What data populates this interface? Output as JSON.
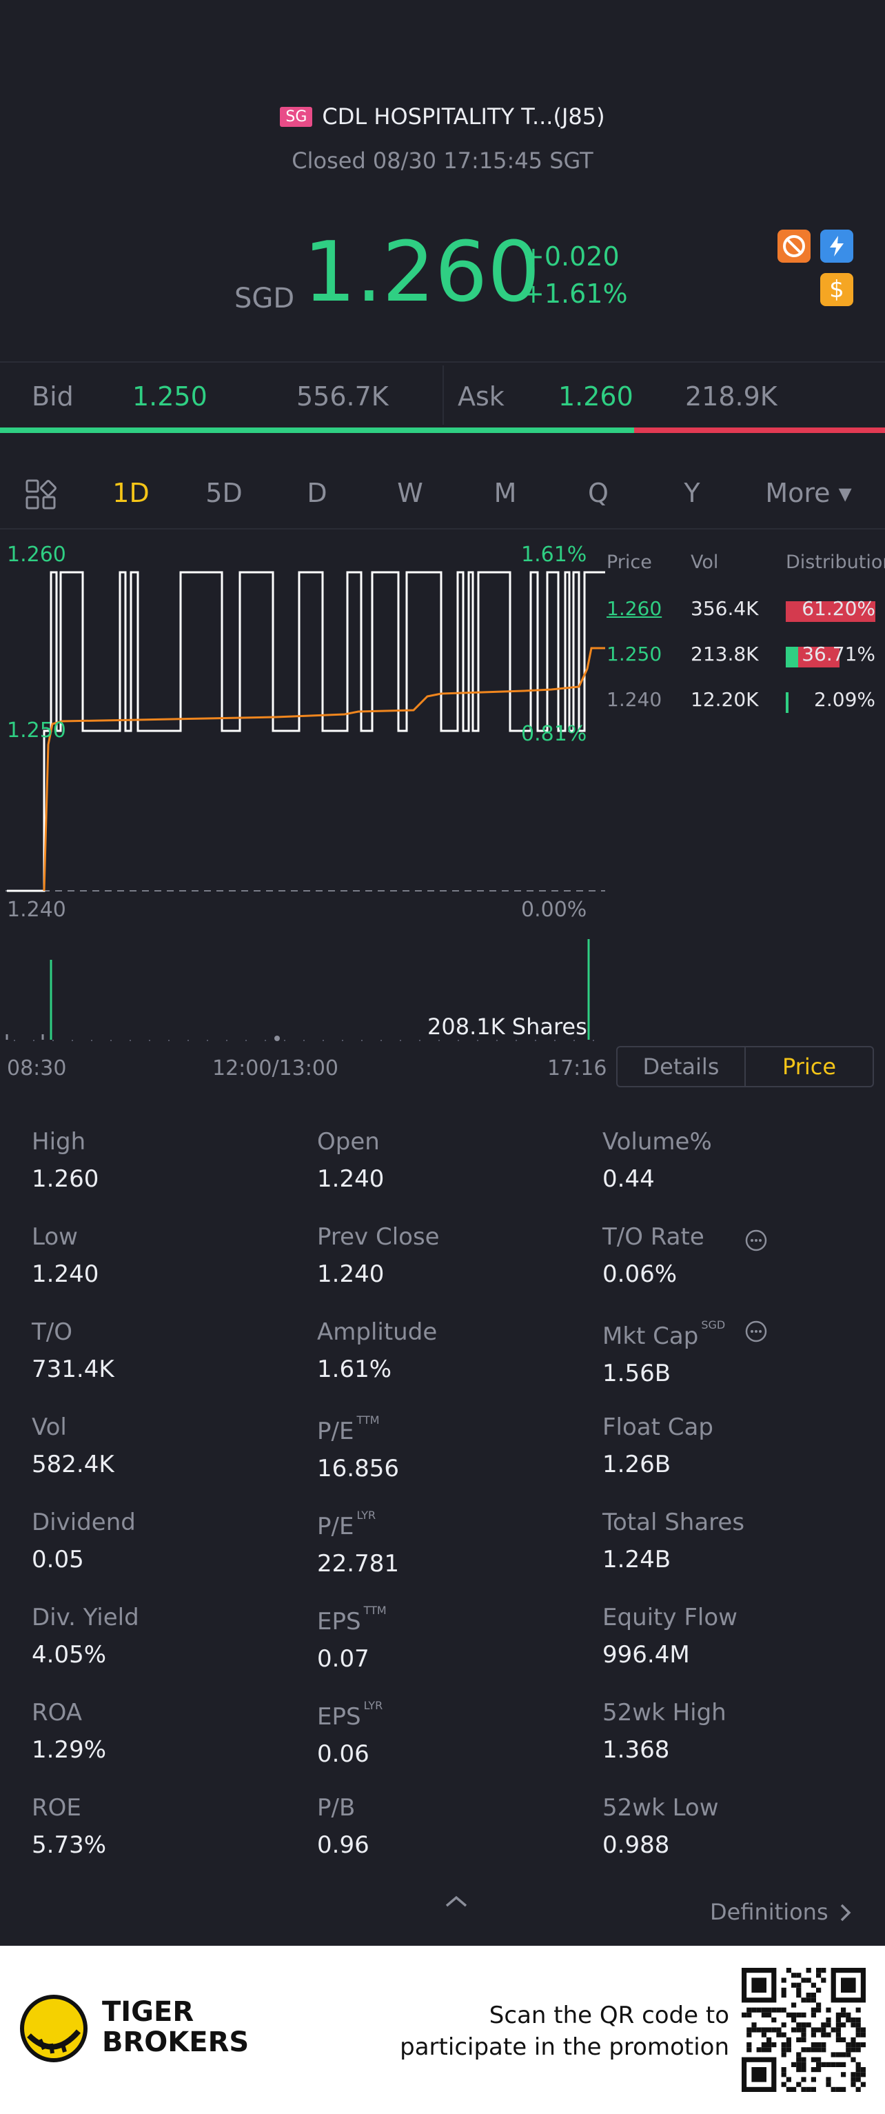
{
  "header": {
    "market_badge": "SG",
    "title": "CDL HOSPITALITY T...(J85)",
    "status": "Closed 08/30 17:15:45 SGT"
  },
  "quote": {
    "currency": "SGD",
    "price": "1.260",
    "change": "+0.020",
    "change_pct": "+1.61%",
    "badge_dollar": "$"
  },
  "bid_ask": {
    "bid_label": "Bid",
    "bid_price": "1.250",
    "bid_size": "556.7K",
    "ask_label": "Ask",
    "ask_price": "1.260",
    "ask_size": "218.9K",
    "bid_fraction": 0.72
  },
  "tabs": [
    {
      "label": "1D",
      "active": true
    },
    {
      "label": "5D",
      "active": false
    },
    {
      "label": "D",
      "active": false
    },
    {
      "label": "W",
      "active": false
    },
    {
      "label": "M",
      "active": false
    },
    {
      "label": "Q",
      "active": false
    },
    {
      "label": "Y",
      "active": false
    }
  ],
  "more_label": "More ▾",
  "chart": {
    "price_high": "1.260",
    "price_mid": "1.250",
    "price_low": "1.240",
    "pct_high": "1.61%",
    "pct_mid": "0.81%",
    "pct_low": "0.00%",
    "volume_label": "208.1K Shares",
    "time_start": "08:30",
    "time_mid": "12:00/13:00",
    "time_end": "17:16"
  },
  "distribution": {
    "headers": [
      "Price",
      "Vol",
      "Distribution"
    ],
    "rows": [
      {
        "price": "1.260",
        "vol": "356.4K",
        "pct": "61.20%",
        "fraction": 0.612
      },
      {
        "price": "1.250",
        "vol": "213.8K",
        "pct": "36.71%",
        "fraction": 0.3671
      },
      {
        "price": "1.240",
        "vol": "12.20K",
        "pct": "2.09%",
        "fraction": 0.0209
      }
    ]
  },
  "toggle": {
    "details": "Details",
    "price": "Price"
  },
  "stats": [
    {
      "label": "High",
      "value": "1.260"
    },
    {
      "label": "Open",
      "value": "1.240"
    },
    {
      "label": "Volume%",
      "value": "0.44"
    },
    {
      "label": "Low",
      "value": "1.240"
    },
    {
      "label": "Prev Close",
      "value": "1.240"
    },
    {
      "label": "T/O Rate",
      "value": "0.06%"
    },
    {
      "label": "T/O",
      "value": "731.4K"
    },
    {
      "label": "Amplitude",
      "value": "1.61%"
    },
    {
      "label": "Mkt Cap",
      "value": "1.56B",
      "sup": "SGD"
    },
    {
      "label": "Vol",
      "value": "582.4K"
    },
    {
      "label": "P/E",
      "value": "16.856",
      "sup": "TTM"
    },
    {
      "label": "Float Cap",
      "value": "1.26B"
    },
    {
      "label": "Dividend",
      "value": "0.05"
    },
    {
      "label": "P/E",
      "value": "22.781",
      "sup": "LYR"
    },
    {
      "label": "Total Shares",
      "value": "1.24B"
    },
    {
      "label": "Div. Yield",
      "value": "4.05%"
    },
    {
      "label": "EPS",
      "value": "0.07",
      "sup": "TTM"
    },
    {
      "label": "Equity Flow",
      "value": "996.4M"
    },
    {
      "label": "ROA",
      "value": "1.29%"
    },
    {
      "label": "EPS",
      "value": "0.06",
      "sup": "LYR"
    },
    {
      "label": "52wk High",
      "value": "1.368"
    },
    {
      "label": "ROE",
      "value": "5.73%"
    },
    {
      "label": "P/B",
      "value": "0.96"
    },
    {
      "label": "52wk Low",
      "value": "0.988"
    }
  ],
  "definitions_label": "Definitions",
  "footer": {
    "brand_line1": "TIGER",
    "brand_line2": "BROKERS",
    "promo_line1": "Scan the QR code to",
    "promo_line2": "participate in the promotion"
  },
  "colors": {
    "up": "#2fcf83",
    "down": "#e23a53",
    "accent": "#f5c518",
    "background": "#1e1f27"
  }
}
